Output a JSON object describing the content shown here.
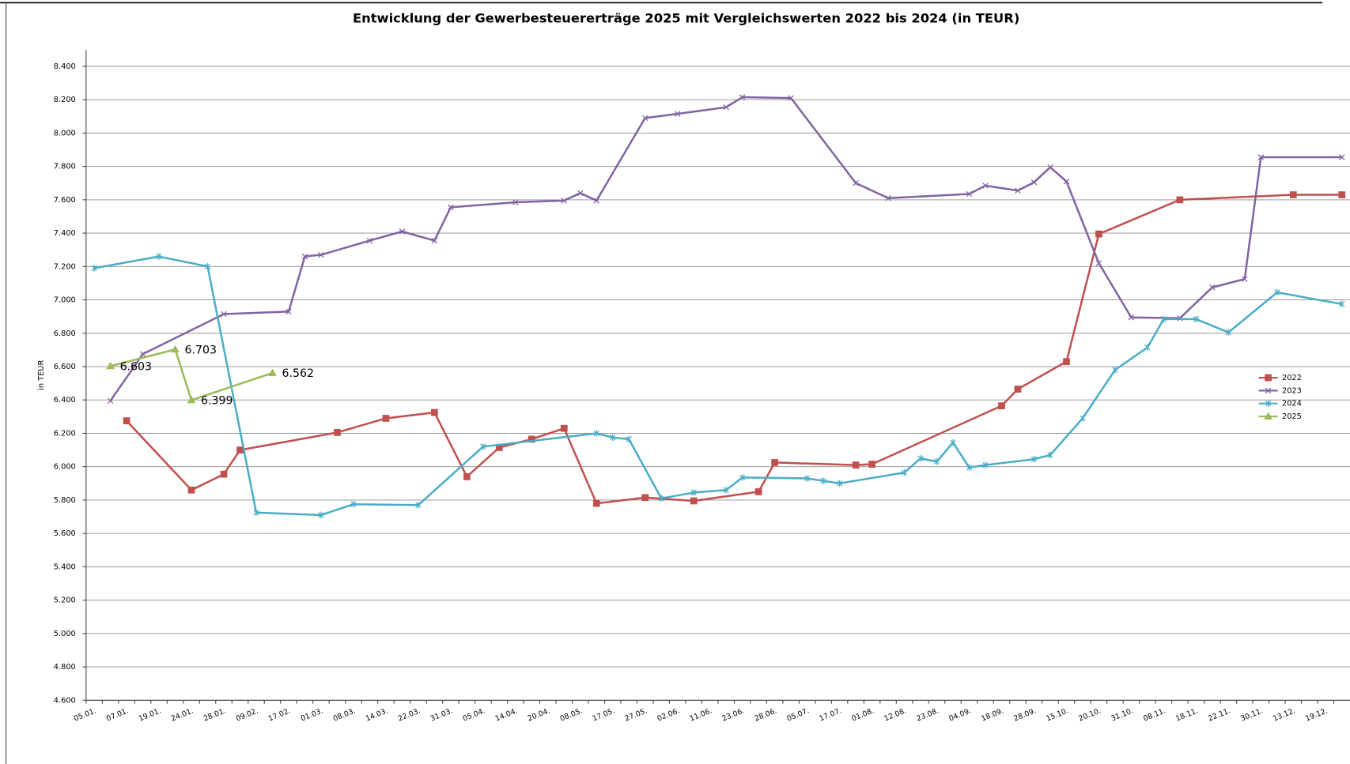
{
  "chart_data": {
    "type": "line",
    "title": "Entwicklung der Gewerbesteuererträge 2025 mit Vergleichswerten 2022 bis 2024 (in TEUR)",
    "y_label": "in TEUR",
    "categories": [
      "05.01.",
      null,
      "07.01.",
      null,
      "19.01.",
      null,
      "24.01.",
      null,
      "28.01.",
      null,
      "09.02.",
      null,
      "17.02.",
      null,
      "01.03.",
      null,
      "08.03.",
      null,
      "14.03.",
      null,
      "22.03.",
      null,
      "31.03.",
      null,
      "05.04.",
      null,
      "14.04.",
      null,
      "20.04.",
      null,
      "08.05.",
      null,
      "17.05.",
      null,
      "27.05.",
      null,
      "02.06.",
      null,
      "11.06.",
      null,
      "23.06.",
      null,
      "28.06.",
      null,
      "05.07.",
      null,
      "17.07.",
      null,
      "01.08.",
      null,
      "12.08.",
      null,
      "23.08.",
      null,
      "04.09.",
      null,
      "18.09.",
      null,
      "28.09.",
      null,
      "15.10.",
      null,
      "20.10.",
      null,
      "31.10.",
      null,
      "08.11.",
      null,
      "18.11.",
      null,
      "22.11.",
      null,
      "30.11.",
      null,
      "13.12.",
      null,
      "19.12.",
      null
    ],
    "series": [
      {
        "name": "2022",
        "color": "#c0504d",
        "marker": "square",
        "values": [
          null,
          null,
          6275,
          null,
          null,
          null,
          5860,
          null,
          5955,
          6100,
          null,
          null,
          null,
          null,
          null,
          6205,
          null,
          null,
          6290,
          null,
          null,
          6325,
          null,
          5940,
          null,
          6115,
          null,
          6165,
          null,
          6230,
          null,
          5780,
          null,
          null,
          5815,
          null,
          null,
          5795,
          null,
          null,
          null,
          5850,
          6025,
          null,
          null,
          null,
          null,
          6010,
          6015,
          null,
          null,
          null,
          null,
          null,
          null,
          null,
          6365,
          6465,
          null,
          null,
          6630,
          null,
          7395,
          null,
          null,
          null,
          null,
          7600,
          null,
          null,
          null,
          null,
          null,
          null,
          7630,
          null,
          null,
          7630
        ]
      },
      {
        "name": "2023",
        "color": "#8064a2",
        "marker": "x",
        "values": [
          null,
          6395,
          null,
          6675,
          null,
          null,
          null,
          null,
          6915,
          null,
          null,
          null,
          6930,
          7260,
          7270,
          null,
          null,
          7355,
          null,
          7410,
          null,
          7355,
          7555,
          null,
          null,
          null,
          7585,
          null,
          null,
          7595,
          7640,
          7595,
          null,
          null,
          8090,
          null,
          8115,
          null,
          null,
          8155,
          8215,
          null,
          null,
          8210,
          null,
          null,
          null,
          7700,
          null,
          7610,
          null,
          null,
          null,
          null,
          7635,
          7685,
          null,
          7655,
          7705,
          7795,
          7710,
          null,
          7220,
          null,
          6895,
          null,
          null,
          6890,
          null,
          7075,
          null,
          7125,
          7855,
          null,
          null,
          null,
          null,
          7855
        ]
      },
      {
        "name": "2024",
        "color": "#4bacc6",
        "marker": "asterisk",
        "values": [
          7190,
          null,
          null,
          null,
          7260,
          null,
          null,
          7200,
          null,
          null,
          5725,
          null,
          null,
          null,
          5710,
          null,
          5775,
          null,
          null,
          null,
          5770,
          null,
          null,
          null,
          6120,
          null,
          null,
          null,
          null,
          null,
          null,
          6200,
          6175,
          6165,
          null,
          5810,
          null,
          5845,
          null,
          5860,
          5935,
          null,
          null,
          null,
          5930,
          5915,
          5900,
          null,
          null,
          null,
          5965,
          6050,
          6030,
          6145,
          5995,
          6010,
          null,
          null,
          6045,
          6070,
          null,
          6290,
          null,
          6580,
          null,
          6715,
          6885,
          null,
          6885,
          null,
          6805,
          null,
          null,
          7045,
          null,
          null,
          null,
          6975
        ]
      },
      {
        "name": "2025",
        "color": "#9bbb59",
        "marker": "triangle",
        "values": [
          null,
          6603,
          null,
          null,
          null,
          6703,
          6399,
          null,
          null,
          null,
          null,
          6562,
          null,
          null,
          null,
          null,
          null,
          null,
          null,
          null,
          null,
          null,
          null,
          null,
          null,
          null,
          null,
          null,
          null,
          null,
          null,
          null,
          null,
          null,
          null,
          null,
          null,
          null,
          null,
          null,
          null,
          null,
          null,
          null,
          null,
          null,
          null,
          null,
          null,
          null,
          null,
          null,
          null,
          null,
          null,
          null,
          null,
          null,
          null,
          null,
          null,
          null,
          null,
          null,
          null,
          null,
          null,
          null,
          null,
          null,
          null,
          null,
          null,
          null,
          null,
          null,
          null,
          null
        ],
        "value_labels": [
          null,
          "6.603",
          null,
          null,
          null,
          "6.703",
          "6.399",
          null,
          null,
          null,
          null,
          "6.562",
          null,
          null,
          null,
          null,
          null,
          null,
          null,
          null,
          null,
          null,
          null,
          null,
          null,
          null,
          null,
          null,
          null,
          null,
          null,
          null,
          null,
          null,
          null,
          null,
          null,
          null,
          null,
          null,
          null,
          null,
          null,
          null,
          null,
          null,
          null,
          null,
          null,
          null,
          null,
          null,
          null,
          null,
          null,
          null,
          null,
          null,
          null,
          null,
          null,
          null,
          null,
          null,
          null,
          null,
          null,
          null,
          null,
          null,
          null,
          null,
          null,
          null,
          null,
          null,
          null,
          null
        ]
      }
    ],
    "ylim": [
      4600,
      8400
    ],
    "yticks": [
      {
        "value": 4600,
        "label": "4.600"
      },
      {
        "value": 4800,
        "label": "4.800"
      },
      {
        "value": 5000,
        "label": "5.000"
      },
      {
        "value": 5200,
        "label": "5.200"
      },
      {
        "value": 5400,
        "label": "5.400"
      },
      {
        "value": 5600,
        "label": "5.600"
      },
      {
        "value": 5800,
        "label": "5.800"
      },
      {
        "value": 6000,
        "label": "6.000"
      },
      {
        "value": 6200,
        "label": "6.200"
      },
      {
        "value": 6400,
        "label": "6.400"
      },
      {
        "value": 6600,
        "label": "6.600"
      },
      {
        "value": 6800,
        "label": "6.800"
      },
      {
        "value": 7000,
        "label": "7.000"
      },
      {
        "value": 7200,
        "label": "7.200"
      },
      {
        "value": 7400,
        "label": "7.400"
      },
      {
        "value": 7600,
        "label": "7.600"
      },
      {
        "value": 7800,
        "label": "7.800"
      },
      {
        "value": 8000,
        "label": "8.000"
      },
      {
        "value": 8200,
        "label": "8.200"
      },
      {
        "value": 8400,
        "label": "8.400"
      }
    ],
    "grid": true,
    "legend": "right"
  }
}
